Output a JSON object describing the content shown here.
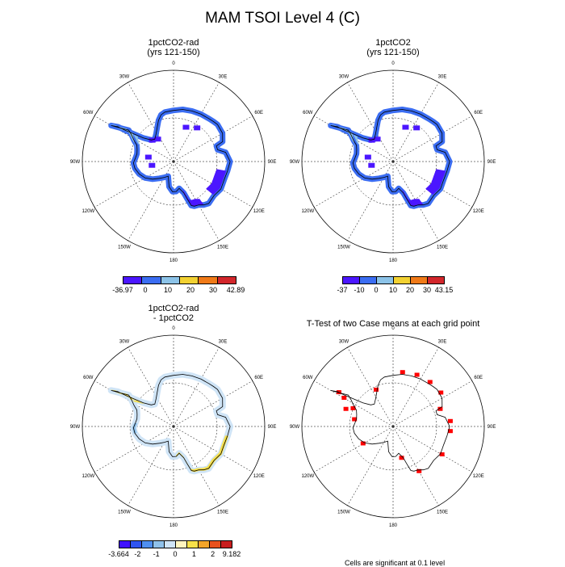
{
  "title": "MAM TSOI Level 4 (C)",
  "colors": {
    "land_outline": "#000000",
    "graticule": "#000000",
    "significant_cell": "#ff0000"
  },
  "panels": [
    {
      "id": "p1",
      "title_line1": "1pctCO2-rad",
      "title_line2": "(yrs 121-150)",
      "colorbar": {
        "colors": [
          "#4b16ff",
          "#3b6df2",
          "#8cc3e8",
          "#f2d132",
          "#f07a18",
          "#d2262b"
        ],
        "labels": [
          "-36.97",
          "0",
          "10",
          "20",
          "30",
          "42.89"
        ]
      }
    },
    {
      "id": "p2",
      "title_line1": "1pctCO2",
      "title_line2": "(yrs 121-150)",
      "colorbar": {
        "colors": [
          "#4b16ff",
          "#3b6df2",
          "#8cc3e8",
          "#f2d132",
          "#f07a18",
          "#d2262b"
        ],
        "labels": [
          "-37",
          "-10",
          "0",
          "10",
          "20",
          "30",
          "43.15"
        ]
      }
    },
    {
      "id": "p3",
      "title_line1": "1pctCO2-rad",
      "title_line2": "- 1pctCO2",
      "colorbar": {
        "colors": [
          "#4012ff",
          "#2f55f0",
          "#4f8ff0",
          "#8fc1ea",
          "#cfe4f6",
          "#fff4bf",
          "#f8e14a",
          "#f3a52a",
          "#e8511c",
          "#c81e1e"
        ],
        "labels": [
          "-3.664",
          "-2",
          "-1",
          "0",
          "1",
          "2",
          "9.182"
        ]
      }
    },
    {
      "id": "p4",
      "title_line1": "T-Test of two Case means at each grid point",
      "title_line2": "",
      "footnote": "Cells are significant at 0.1 level"
    }
  ],
  "longitude_labels": [
    "0",
    "30E",
    "60E",
    "90E",
    "120E",
    "150E",
    "180",
    "150W",
    "120W",
    "90W",
    "60W",
    "30W"
  ],
  "chart_data": {
    "type": "map",
    "projection": "south polar stereographic",
    "region": "Antarctica",
    "variable": "MAM TSOI Level 4 (C)",
    "panels": [
      {
        "title": "1pctCO2-rad (yrs 121-150)",
        "colorbar_min": -36.97,
        "colorbar_max": 42.89
      },
      {
        "title": "1pctCO2 (yrs 121-150)",
        "colorbar_min": -37,
        "colorbar_max": 43.15
      },
      {
        "title": "1pctCO2-rad - 1pctCO2",
        "colorbar_min": -3.664,
        "colorbar_max": 9.182
      },
      {
        "title": "T-Test of two Case means at each grid point"
      }
    ]
  }
}
